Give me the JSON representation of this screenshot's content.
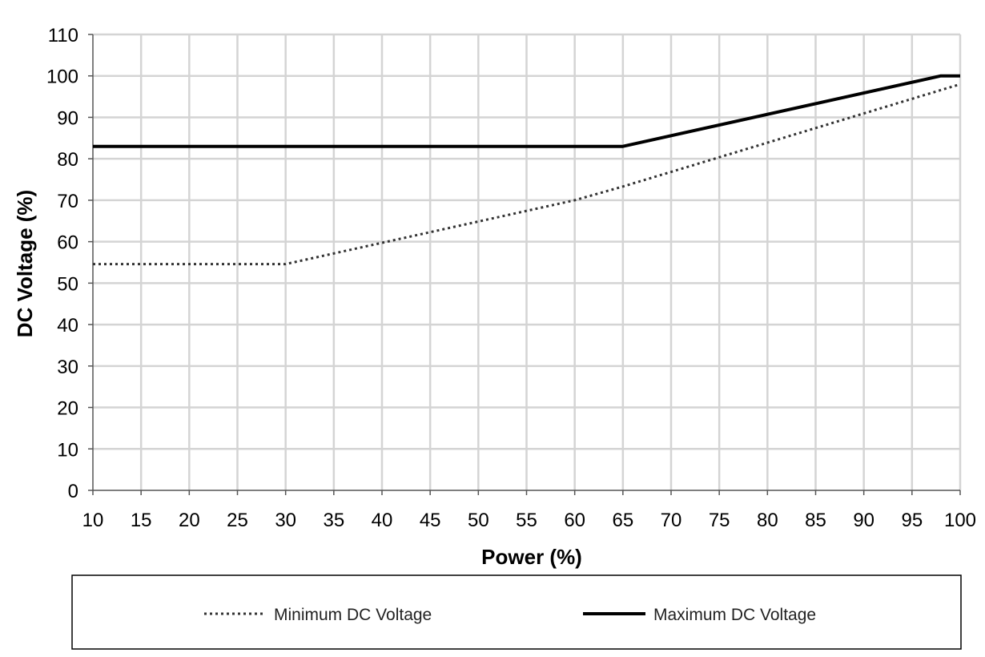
{
  "chart_data": {
    "type": "line",
    "title": "",
    "xlabel": "Power (%)",
    "ylabel": "DC Voltage (%)",
    "xlim": [
      10,
      100
    ],
    "ylim": [
      0,
      110
    ],
    "x_ticks": [
      10,
      15,
      20,
      25,
      30,
      35,
      40,
      45,
      50,
      55,
      60,
      65,
      70,
      75,
      80,
      85,
      90,
      95,
      100
    ],
    "y_ticks": [
      0,
      10,
      20,
      30,
      40,
      50,
      60,
      70,
      80,
      90,
      100,
      110
    ],
    "grid": true,
    "legend_position": "bottom",
    "series": [
      {
        "name": "Minimum DC Voltage",
        "style": "dotted",
        "color": "#333333",
        "points": [
          [
            10,
            54.6
          ],
          [
            30,
            54.6
          ],
          [
            60,
            70
          ],
          [
            65,
            73.3
          ],
          [
            100,
            98
          ]
        ]
      },
      {
        "name": "Maximum DC Voltage",
        "style": "solid",
        "color": "#000000",
        "points": [
          [
            10,
            83
          ],
          [
            65,
            83
          ],
          [
            98,
            100
          ],
          [
            100,
            100
          ]
        ]
      }
    ]
  }
}
